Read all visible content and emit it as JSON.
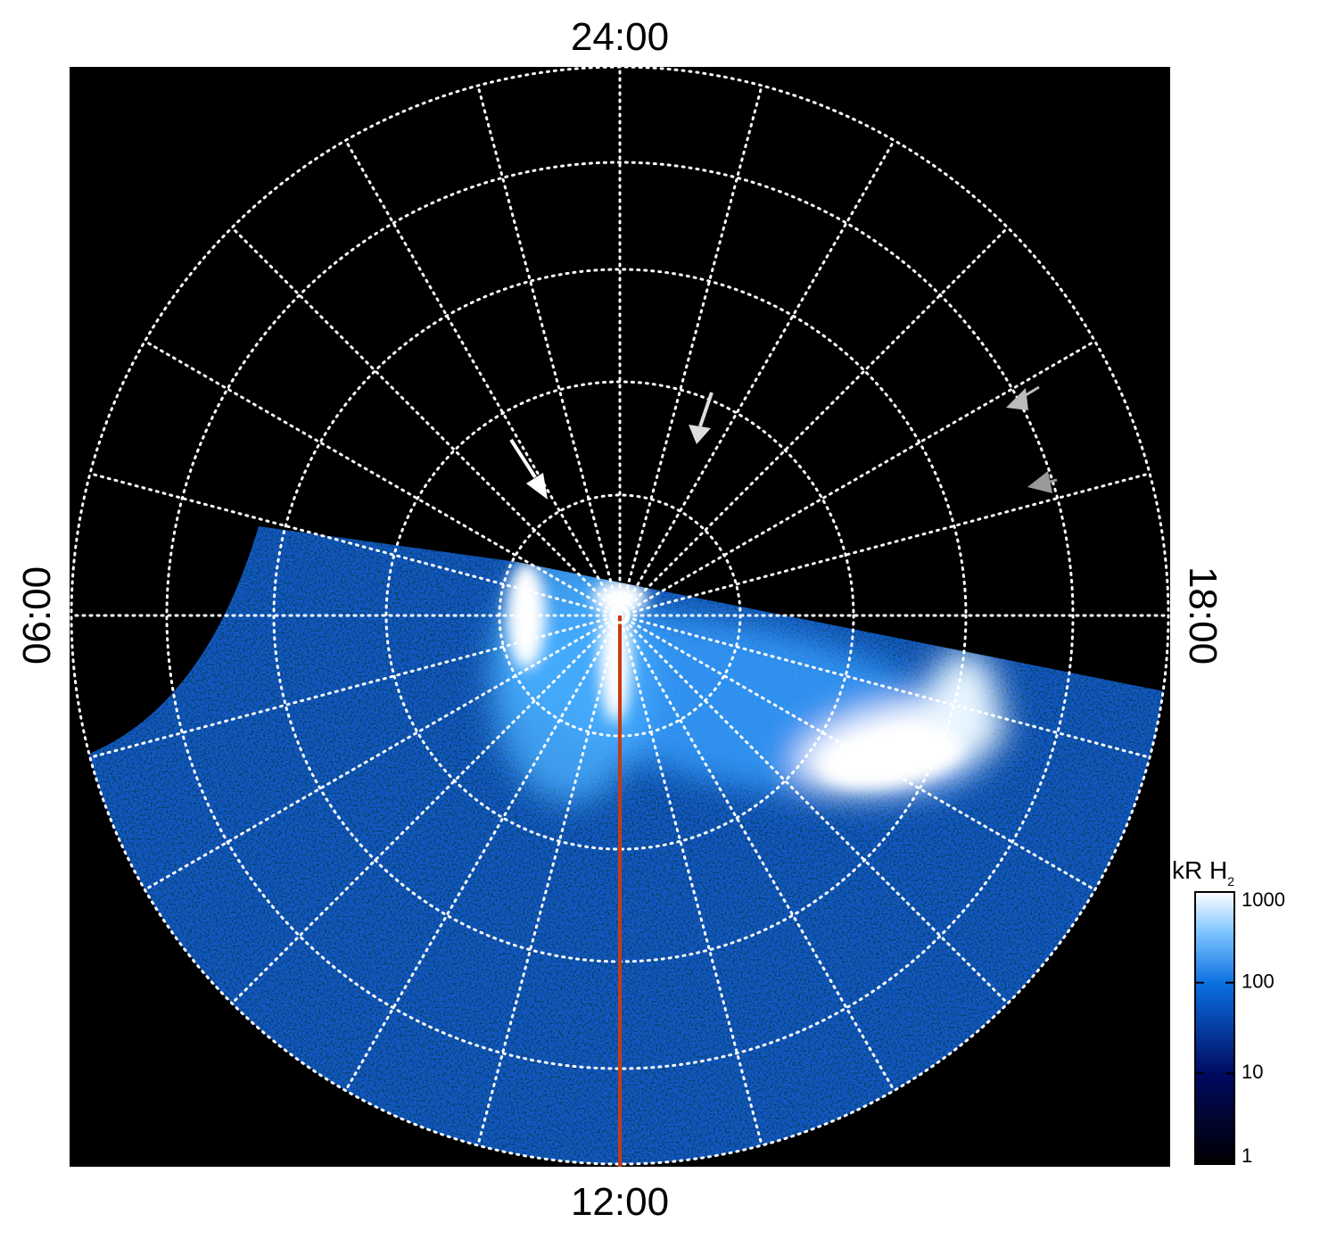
{
  "labels": {
    "top": "24:00",
    "bottom": "12:00",
    "left": "06:00",
    "right": "18:00"
  },
  "colorbar": {
    "title": "kR H",
    "title_sub": "2",
    "scale": "log",
    "lim": [
      1,
      1000
    ],
    "ticks": [
      1,
      10,
      100,
      1000
    ]
  }
}
